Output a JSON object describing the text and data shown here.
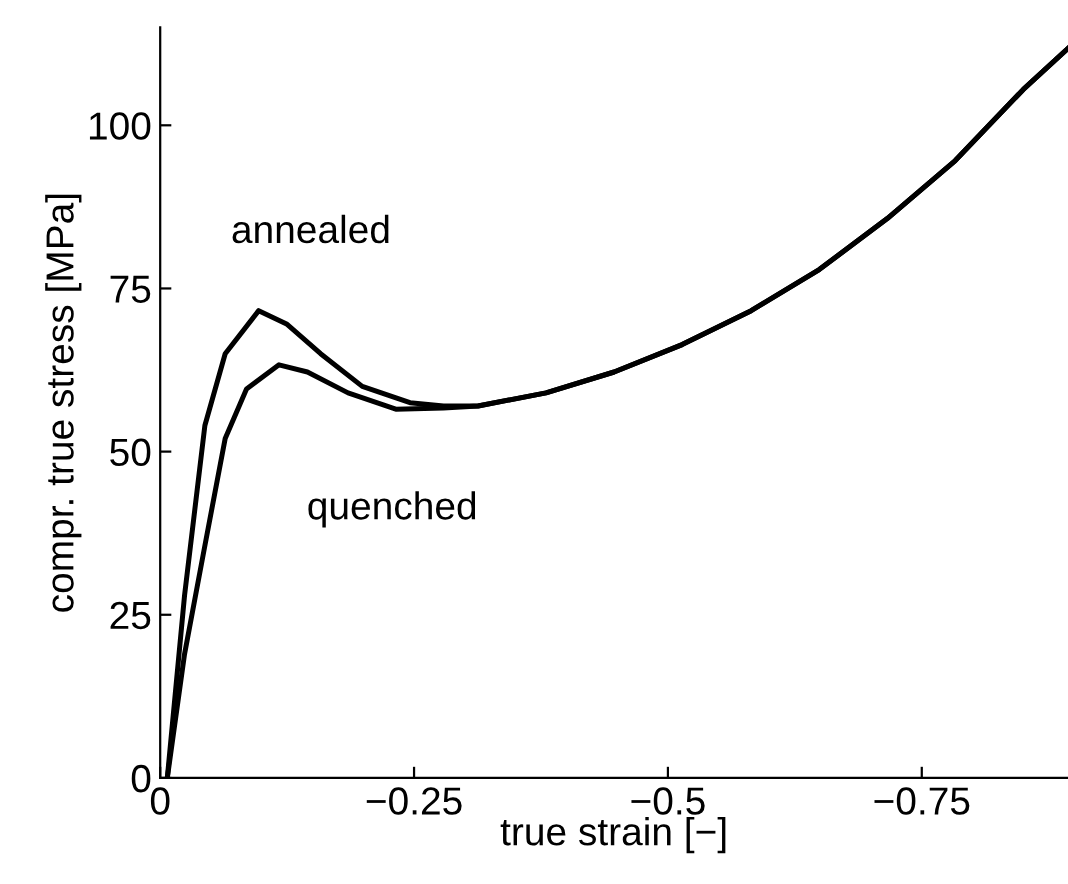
{
  "chart_data": {
    "type": "line",
    "xlabel": "true strain [−]",
    "ylabel": "compr. true stress [MPa]",
    "xlim": [
      0,
      -0.894
    ],
    "ylim": [
      0,
      115
    ],
    "xticks": [
      0,
      {
        "value": -0.25,
        "label": "−0.25"
      },
      {
        "value": -0.5,
        "label": "−0.5"
      },
      {
        "value": -0.75,
        "label": "−0.75"
      }
    ],
    "yticks": [
      0,
      25,
      50,
      75,
      100
    ],
    "grid": false,
    "legend": false,
    "marker": "none",
    "line_style": "solid",
    "series": [
      {
        "name": "annealed",
        "color": "#000000",
        "x": [
          -0.007,
          -0.024,
          -0.044,
          -0.064,
          -0.097,
          -0.125,
          -0.158,
          -0.199,
          -0.246,
          -0.279,
          -0.313,
          -0.38,
          -0.447,
          -0.514,
          -0.582,
          -0.649,
          -0.716,
          -0.783,
          -0.85,
          -0.894
        ],
        "values": [
          0,
          28,
          54,
          65,
          71.6,
          69.5,
          65,
          60,
          57.5,
          57,
          57,
          59,
          62.2,
          66.4,
          71.6,
          77.9,
          85.7,
          94.6,
          105.5,
          111.8
        ]
      },
      {
        "name": "quenched",
        "color": "#000000",
        "x": [
          -0.007,
          -0.024,
          -0.044,
          -0.064,
          -0.085,
          -0.117,
          -0.145,
          -0.185,
          -0.232,
          -0.279,
          -0.313,
          -0.38,
          -0.447,
          -0.514,
          -0.582,
          -0.649,
          -0.716,
          -0.783,
          -0.85,
          -0.894
        ],
        "values": [
          0,
          19,
          35.6,
          52,
          59.6,
          63.3,
          62.2,
          59,
          56.5,
          56.7,
          57,
          59,
          62.2,
          66.4,
          71.6,
          77.9,
          85.7,
          94.6,
          105.5,
          111.8
        ]
      }
    ]
  }
}
